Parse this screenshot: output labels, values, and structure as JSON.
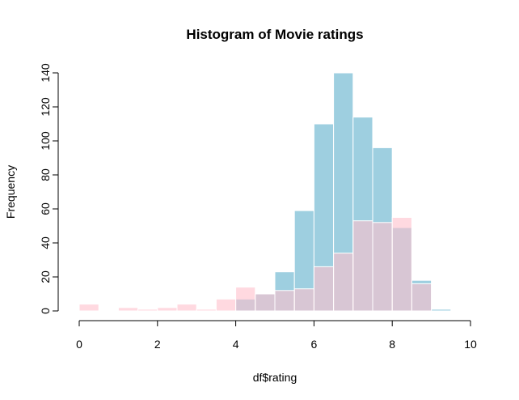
{
  "chart_data": {
    "type": "bar",
    "title": "Histogram of Movie ratings",
    "xlabel": "df$rating",
    "ylabel": "Frequency",
    "xlim": [
      0,
      10
    ],
    "ylim": [
      0,
      140
    ],
    "x_ticks": [
      "0",
      "2",
      "4",
      "6",
      "8",
      "10"
    ],
    "y_ticks": [
      "0",
      "20",
      "40",
      "60",
      "80",
      "100",
      "120",
      "140"
    ],
    "bin_width": 0.5,
    "series": [
      {
        "color": "#9ECFE0",
        "bins": [
          {
            "start": 4.0,
            "value": 7
          },
          {
            "start": 4.5,
            "value": 10
          },
          {
            "start": 5.0,
            "value": 23
          },
          {
            "start": 5.5,
            "value": 59
          },
          {
            "start": 6.0,
            "value": 110
          },
          {
            "start": 6.5,
            "value": 140
          },
          {
            "start": 7.0,
            "value": 114
          },
          {
            "start": 7.5,
            "value": 96
          },
          {
            "start": 8.0,
            "value": 49
          },
          {
            "start": 8.5,
            "value": 18
          },
          {
            "start": 9.0,
            "value": 1
          }
        ]
      },
      {
        "color": "#FFC0CB",
        "opacity": 0.6,
        "bins": [
          {
            "start": 0.0,
            "value": 4
          },
          {
            "start": 0.5,
            "value": 0
          },
          {
            "start": 1.0,
            "value": 2
          },
          {
            "start": 1.5,
            "value": 1
          },
          {
            "start": 2.0,
            "value": 2
          },
          {
            "start": 2.5,
            "value": 4
          },
          {
            "start": 3.0,
            "value": 1
          },
          {
            "start": 3.5,
            "value": 7
          },
          {
            "start": 4.0,
            "value": 14
          },
          {
            "start": 4.5,
            "value": 10
          },
          {
            "start": 5.0,
            "value": 12
          },
          {
            "start": 5.5,
            "value": 13
          },
          {
            "start": 6.0,
            "value": 26
          },
          {
            "start": 6.5,
            "value": 34
          },
          {
            "start": 7.0,
            "value": 53
          },
          {
            "start": 7.5,
            "value": 52
          },
          {
            "start": 8.0,
            "value": 55
          },
          {
            "start": 8.5,
            "value": 16
          }
        ]
      }
    ]
  }
}
